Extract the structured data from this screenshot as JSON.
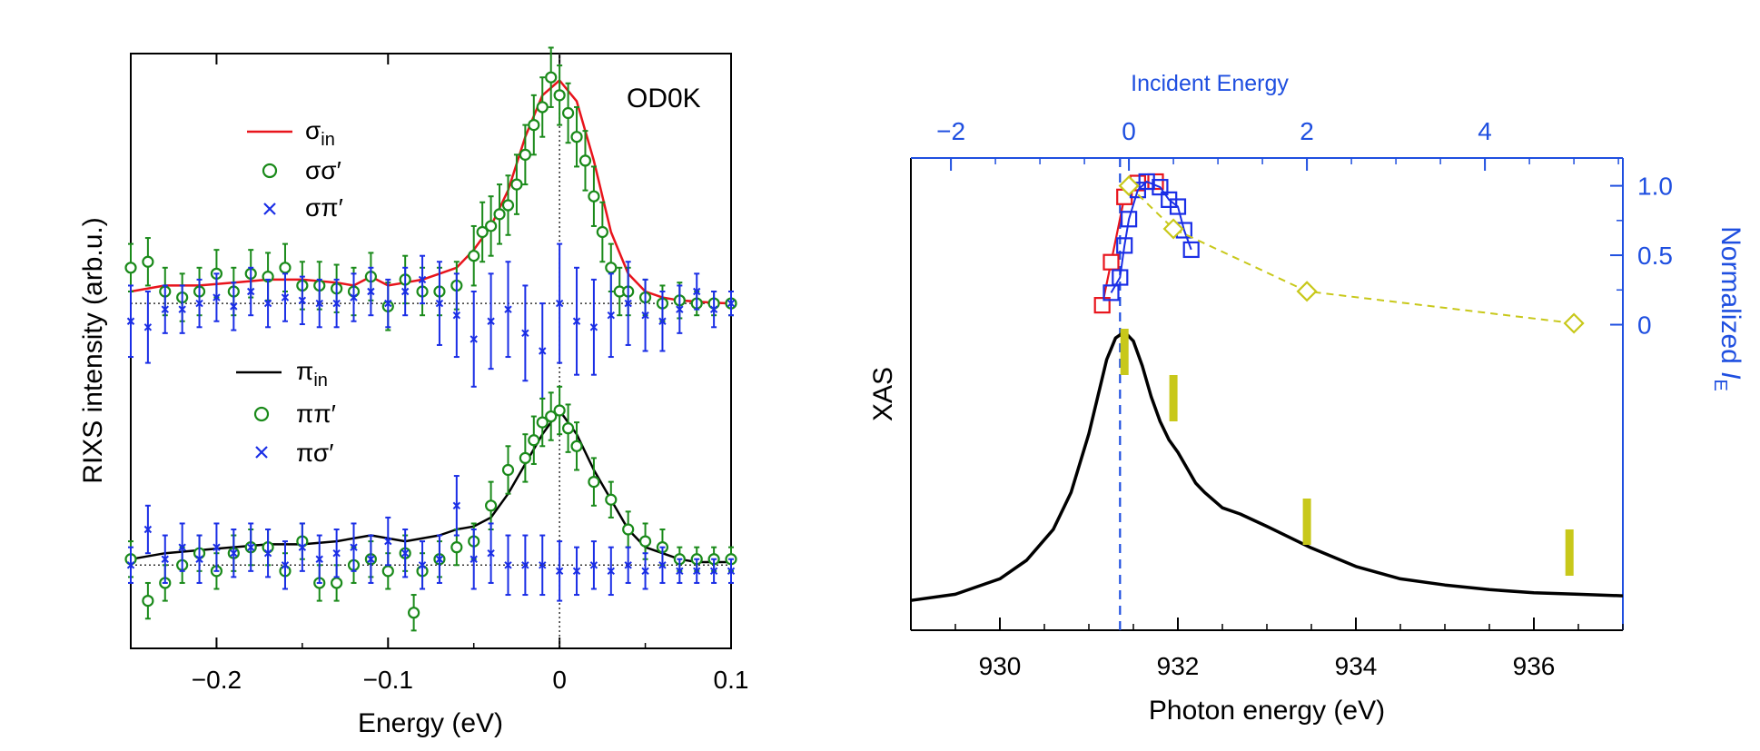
{
  "colors": {
    "red": "#e8141c",
    "green": "#1a8a1a",
    "blue": "#1a2ee6",
    "black": "#000000",
    "olive": "#c8c81a",
    "axis_blue": "#1f4fe0"
  },
  "chart_data": [
    {
      "type": "scatter",
      "title": "OD0K",
      "xlabel": "Energy (eV)",
      "ylabel": "RIXS intensity (arb.u.)",
      "xlim": [
        -0.25,
        0.1
      ],
      "ylim": [
        0,
        1
      ],
      "xticks": [
        "−0.2",
        "−0.1",
        "0",
        "0.1"
      ],
      "xtick_values": [
        -0.2,
        -0.1,
        0,
        0.1
      ],
      "legend": {
        "sigma_in": "σ",
        "sigma_in_sub": "in",
        "sigma_sigma": "σσ′",
        "sigma_pi": "σπ′",
        "pi_in": "π",
        "pi_in_sub": "in",
        "pi_pi": "ππ′",
        "pi_sigma": "πσ′"
      },
      "baseline_sigma": 0.58,
      "baseline_pi": 0.14,
      "series": [
        {
          "name": "σin fit",
          "style": "line",
          "color": "red",
          "x": [
            -0.25,
            -0.23,
            -0.21,
            -0.19,
            -0.17,
            -0.15,
            -0.13,
            -0.12,
            -0.11,
            -0.1,
            -0.09,
            -0.08,
            -0.07,
            -0.06,
            -0.05,
            -0.04,
            -0.03,
            -0.02,
            -0.01,
            0,
            0.01,
            0.02,
            0.03,
            0.04,
            0.05,
            0.06,
            0.07,
            0.08,
            0.09,
            0.1
          ],
          "y": [
            0.6,
            0.61,
            0.61,
            0.615,
            0.62,
            0.62,
            0.615,
            0.61,
            0.625,
            0.61,
            0.615,
            0.62,
            0.63,
            0.64,
            0.67,
            0.71,
            0.77,
            0.86,
            0.93,
            0.955,
            0.92,
            0.82,
            0.7,
            0.63,
            0.6,
            0.59,
            0.585,
            0.583,
            0.581,
            0.58
          ]
        },
        {
          "name": "σσ′",
          "style": "circle",
          "color": "green",
          "x": [
            -0.25,
            -0.24,
            -0.23,
            -0.22,
            -0.21,
            -0.2,
            -0.19,
            -0.18,
            -0.17,
            -0.16,
            -0.15,
            -0.14,
            -0.13,
            -0.12,
            -0.11,
            -0.1,
            -0.09,
            -0.08,
            -0.07,
            -0.06,
            -0.05,
            -0.045,
            -0.04,
            -0.035,
            -0.03,
            -0.025,
            -0.02,
            -0.015,
            -0.01,
            -0.005,
            0,
            0.005,
            0.01,
            0.015,
            0.02,
            0.025,
            0.03,
            0.035,
            0.04,
            0.05,
            0.06,
            0.07,
            0.08,
            0.09,
            0.1
          ],
          "y": [
            0.64,
            0.65,
            0.6,
            0.59,
            0.6,
            0.63,
            0.6,
            0.63,
            0.625,
            0.64,
            0.61,
            0.61,
            0.605,
            0.6,
            0.625,
            0.575,
            0.62,
            0.6,
            0.6,
            0.61,
            0.66,
            0.7,
            0.71,
            0.73,
            0.745,
            0.78,
            0.83,
            0.88,
            0.91,
            0.96,
            0.93,
            0.9,
            0.86,
            0.82,
            0.76,
            0.7,
            0.64,
            0.6,
            0.6,
            0.59,
            0.58,
            0.585,
            0.58,
            0.58,
            0.58
          ],
          "err": [
            0.04,
            0.04,
            0.04,
            0.04,
            0.04,
            0.04,
            0.04,
            0.04,
            0.04,
            0.04,
            0.04,
            0.04,
            0.04,
            0.04,
            0.04,
            0.04,
            0.04,
            0.04,
            0.04,
            0.04,
            0.05,
            0.05,
            0.05,
            0.05,
            0.05,
            0.05,
            0.05,
            0.05,
            0.05,
            0.05,
            0.05,
            0.05,
            0.05,
            0.05,
            0.05,
            0.05,
            0.04,
            0.04,
            0.04,
            0.03,
            0.03,
            0.03,
            0.02,
            0.02,
            0.02
          ]
        },
        {
          "name": "σπ′",
          "style": "cross",
          "color": "blue",
          "x": [
            -0.25,
            -0.24,
            -0.23,
            -0.22,
            -0.21,
            -0.2,
            -0.19,
            -0.18,
            -0.17,
            -0.16,
            -0.15,
            -0.14,
            -0.13,
            -0.12,
            -0.11,
            -0.1,
            -0.09,
            -0.08,
            -0.07,
            -0.06,
            -0.05,
            -0.04,
            -0.03,
            -0.02,
            -0.01,
            0,
            0.01,
            0.02,
            0.03,
            0.04,
            0.05,
            0.06,
            0.07,
            0.08,
            0.09,
            0.1
          ],
          "y": [
            0.55,
            0.54,
            0.57,
            0.57,
            0.58,
            0.59,
            0.575,
            0.6,
            0.58,
            0.59,
            0.585,
            0.58,
            0.58,
            0.59,
            0.6,
            0.58,
            0.6,
            0.62,
            0.58,
            0.56,
            0.52,
            0.55,
            0.57,
            0.53,
            0.5,
            0.58,
            0.55,
            0.54,
            0.56,
            0.58,
            0.56,
            0.55,
            0.57,
            0.6,
            0.57,
            0.58
          ],
          "err": [
            0.06,
            0.06,
            0.04,
            0.04,
            0.04,
            0.04,
            0.04,
            0.04,
            0.04,
            0.04,
            0.04,
            0.04,
            0.04,
            0.04,
            0.04,
            0.04,
            0.04,
            0.04,
            0.07,
            0.07,
            0.08,
            0.08,
            0.08,
            0.08,
            0.08,
            0.1,
            0.09,
            0.08,
            0.07,
            0.07,
            0.06,
            0.05,
            0.04,
            0.03,
            0.03,
            0.02
          ]
        },
        {
          "name": "πin fit",
          "style": "line",
          "color": "black",
          "x": [
            -0.25,
            -0.23,
            -0.21,
            -0.19,
            -0.17,
            -0.15,
            -0.13,
            -0.11,
            -0.09,
            -0.07,
            -0.06,
            -0.05,
            -0.04,
            -0.03,
            -0.02,
            -0.01,
            0,
            0.01,
            0.02,
            0.03,
            0.04,
            0.05,
            0.06,
            0.07,
            0.08,
            0.09,
            0.1
          ],
          "y": [
            0.15,
            0.16,
            0.165,
            0.17,
            0.175,
            0.175,
            0.18,
            0.19,
            0.18,
            0.19,
            0.2,
            0.205,
            0.22,
            0.26,
            0.31,
            0.36,
            0.4,
            0.36,
            0.3,
            0.25,
            0.2,
            0.17,
            0.16,
            0.15,
            0.145,
            0.145,
            0.145
          ]
        },
        {
          "name": "ππ′",
          "style": "circle",
          "color": "green",
          "x": [
            -0.25,
            -0.24,
            -0.23,
            -0.22,
            -0.21,
            -0.2,
            -0.19,
            -0.18,
            -0.17,
            -0.16,
            -0.15,
            -0.14,
            -0.13,
            -0.12,
            -0.11,
            -0.1,
            -0.09,
            -0.085,
            -0.08,
            -0.07,
            -0.06,
            -0.05,
            -0.04,
            -0.03,
            -0.02,
            -0.015,
            -0.01,
            -0.005,
            0,
            0.005,
            0.01,
            0.02,
            0.03,
            0.04,
            0.05,
            0.06,
            0.07,
            0.08,
            0.09,
            0.1
          ],
          "y": [
            0.15,
            0.08,
            0.11,
            0.14,
            0.16,
            0.13,
            0.16,
            0.17,
            0.17,
            0.13,
            0.18,
            0.11,
            0.11,
            0.14,
            0.15,
            0.13,
            0.16,
            0.06,
            0.13,
            0.15,
            0.17,
            0.18,
            0.24,
            0.3,
            0.32,
            0.35,
            0.38,
            0.39,
            0.4,
            0.37,
            0.34,
            0.28,
            0.25,
            0.2,
            0.18,
            0.17,
            0.15,
            0.15,
            0.15,
            0.15
          ],
          "err": [
            0.03,
            0.03,
            0.03,
            0.03,
            0.03,
            0.03,
            0.03,
            0.03,
            0.03,
            0.03,
            0.03,
            0.03,
            0.03,
            0.03,
            0.03,
            0.03,
            0.03,
            0.03,
            0.03,
            0.03,
            0.03,
            0.03,
            0.04,
            0.04,
            0.04,
            0.04,
            0.04,
            0.04,
            0.04,
            0.04,
            0.04,
            0.04,
            0.03,
            0.03,
            0.03,
            0.03,
            0.02,
            0.02,
            0.02,
            0.02
          ]
        },
        {
          "name": "πσ′",
          "style": "cross",
          "color": "blue",
          "x": [
            -0.25,
            -0.24,
            -0.23,
            -0.22,
            -0.21,
            -0.2,
            -0.19,
            -0.18,
            -0.17,
            -0.16,
            -0.15,
            -0.14,
            -0.13,
            -0.12,
            -0.11,
            -0.1,
            -0.09,
            -0.08,
            -0.07,
            -0.06,
            -0.05,
            -0.04,
            -0.03,
            -0.02,
            -0.01,
            0,
            0.01,
            0.02,
            0.03,
            0.04,
            0.05,
            0.06,
            0.07,
            0.08,
            0.09,
            0.1
          ],
          "y": [
            0.14,
            0.2,
            0.15,
            0.17,
            0.15,
            0.17,
            0.16,
            0.17,
            0.16,
            0.14,
            0.17,
            0.15,
            0.16,
            0.17,
            0.15,
            0.18,
            0.16,
            0.14,
            0.15,
            0.24,
            0.15,
            0.16,
            0.14,
            0.14,
            0.14,
            0.13,
            0.13,
            0.14,
            0.13,
            0.14,
            0.13,
            0.14,
            0.13,
            0.13,
            0.13,
            0.13
          ],
          "err": [
            0.03,
            0.04,
            0.04,
            0.04,
            0.04,
            0.04,
            0.04,
            0.04,
            0.04,
            0.04,
            0.04,
            0.04,
            0.04,
            0.04,
            0.04,
            0.04,
            0.04,
            0.04,
            0.04,
            0.05,
            0.05,
            0.05,
            0.05,
            0.05,
            0.05,
            0.05,
            0.04,
            0.04,
            0.04,
            0.03,
            0.03,
            0.03,
            0.02,
            0.02,
            0.02,
            0.02
          ]
        }
      ]
    },
    {
      "type": "line",
      "xlabel": "Photon energy (eV)",
      "ylabel": "XAS",
      "top_xlabel": "Incident Energy",
      "right_ylabel": "Normalized ",
      "right_ylabel_italic": "I",
      "right_ylabel_sub": "E",
      "xlim": [
        929,
        937
      ],
      "xticks": [
        "930",
        "932",
        "934",
        "936"
      ],
      "xtick_values": [
        930,
        932,
        934,
        936
      ],
      "top_xlim": [
        -2.45,
        5.55
      ],
      "top_xticks": [
        "−2",
        "0",
        "2",
        "4"
      ],
      "top_xtick_values": [
        -2,
        0,
        2,
        4
      ],
      "right_ylim": [
        -2.2,
        1.2
      ],
      "right_yticks": [
        "0",
        "0.5",
        "1.0"
      ],
      "right_ytick_values": [
        0,
        0.5,
        1.0
      ],
      "xas_peak_energy": 931.35,
      "series": [
        {
          "name": "XAS",
          "color": "black",
          "x": [
            929,
            929.5,
            930,
            930.3,
            930.6,
            930.8,
            931,
            931.1,
            931.2,
            931.3,
            931.4,
            931.5,
            931.6,
            931.7,
            931.8,
            931.9,
            932,
            932.1,
            932.2,
            932.3,
            932.5,
            932.7,
            933,
            933.5,
            934,
            934.5,
            935,
            935.5,
            936,
            936.5,
            937
          ],
          "y": [
            0.02,
            0.04,
            0.09,
            0.15,
            0.25,
            0.37,
            0.56,
            0.68,
            0.8,
            0.87,
            0.89,
            0.86,
            0.78,
            0.68,
            0.6,
            0.54,
            0.5,
            0.45,
            0.4,
            0.37,
            0.32,
            0.3,
            0.26,
            0.19,
            0.13,
            0.09,
            0.07,
            0.055,
            0.045,
            0.04,
            0.035
          ]
        },
        {
          "name": "red squares",
          "color": "red",
          "x": [
            -0.3,
            -0.2,
            -0.05,
            0.1,
            0.3
          ],
          "y": [
            0.14,
            0.45,
            0.92,
            1.02,
            1.03
          ]
        },
        {
          "name": "blue squares",
          "color": "blue",
          "x": [
            -0.2,
            -0.1,
            -0.05,
            0,
            0.1,
            0.2,
            0.35,
            0.45,
            0.55,
            0.62,
            0.7
          ],
          "y": [
            0.23,
            0.34,
            0.57,
            0.76,
            0.97,
            1.03,
            0.99,
            0.9,
            0.85,
            0.68,
            0.54
          ]
        },
        {
          "name": "olive diamonds",
          "color": "olive",
          "x": [
            0,
            0.5,
            2.0,
            5.0
          ],
          "y": [
            1.0,
            0.69,
            0.24,
            0.01
          ]
        },
        {
          "name": "olive bars",
          "color": "olive",
          "energies": [
            931.4,
            931.95,
            933.45,
            936.4
          ],
          "bottom": [
            0.75,
            0.6,
            0.2,
            0.1
          ],
          "top": [
            0.9,
            0.75,
            0.35,
            0.25
          ]
        }
      ]
    }
  ]
}
